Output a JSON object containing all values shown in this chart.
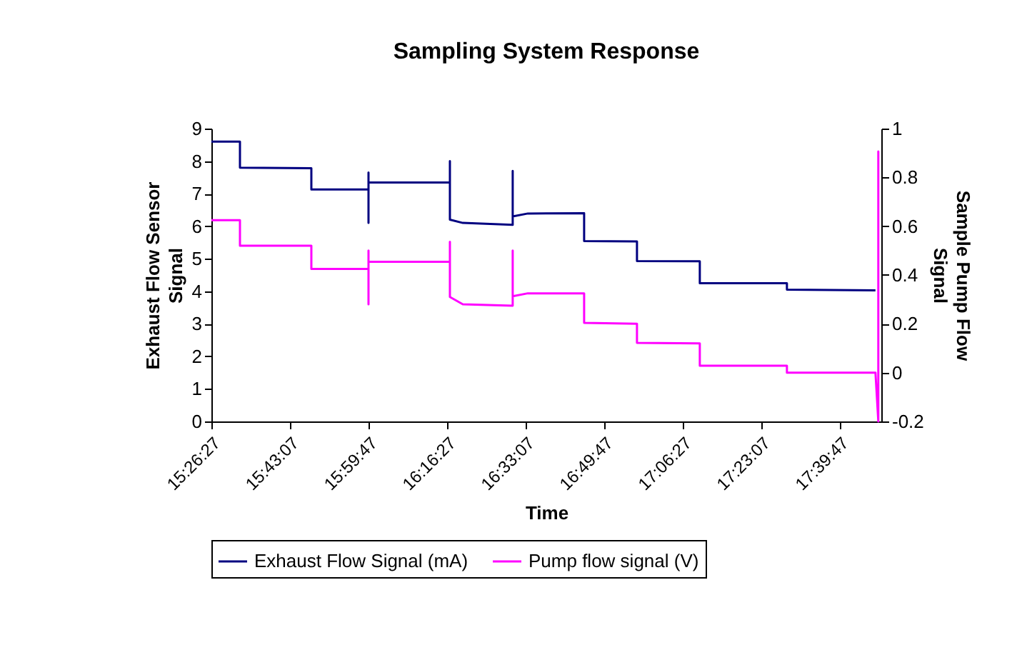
{
  "chart_data": {
    "type": "line",
    "title": "Sampling System Response",
    "xlabel": "Time",
    "ylabel": "Exhaust Flow Sensor Signal",
    "y2label": "Sample Pump Flow Signal",
    "xlim": [
      15.4408,
      17.81
    ],
    "xticks": [
      {
        "value": 15.4408,
        "label": "15:26:27"
      },
      {
        "value": 15.7186,
        "label": "15:43:07"
      },
      {
        "value": 15.9964,
        "label": "15:59:47"
      },
      {
        "value": 16.2742,
        "label": "16:16:27"
      },
      {
        "value": 16.5519,
        "label": "16:33:07"
      },
      {
        "value": 16.8297,
        "label": "16:49:47"
      },
      {
        "value": 17.1075,
        "label": "17:06:27"
      },
      {
        "value": 17.3853,
        "label": "17:23:07"
      },
      {
        "value": 17.6631,
        "label": "17:39:47"
      }
    ],
    "ylim": [
      0,
      9
    ],
    "yticks": [
      0,
      1,
      2,
      3,
      4,
      5,
      6,
      7,
      8,
      9
    ],
    "y2lim": [
      -0.2,
      1
    ],
    "y2ticks": [
      -0.2,
      0,
      0.2,
      0.4,
      0.6,
      0.8,
      1
    ],
    "grid": false,
    "legend": "bottom",
    "marker": "none",
    "line_style": "solid",
    "series": [
      {
        "name": "Exhaust Flow Signal (mA)",
        "color": "#000080",
        "x": [
          15.4408,
          15.5418,
          15.5418,
          15.7943,
          15.7943,
          15.9964,
          15.9964,
          15.9964,
          15.9964,
          16.2843,
          16.2843,
          16.2843,
          16.33,
          16.5064,
          16.5064,
          16.5064,
          16.56,
          16.759,
          16.759,
          16.9459,
          16.9459,
          17.1681,
          17.1681,
          17.4762,
          17.4762,
          17.7893
        ],
        "values": [
          8.6,
          8.6,
          7.8,
          7.78,
          7.13,
          7.13,
          6.1,
          7.65,
          7.34,
          7.34,
          8.0,
          6.2,
          6.1,
          6.04,
          7.7,
          6.3,
          6.39,
          6.4,
          5.54,
          5.53,
          4.93,
          4.92,
          4.25,
          4.25,
          4.05,
          4.03
        ]
      },
      {
        "name": "Pump flow signal (V)",
        "color": "#ff00ff",
        "axis": "y2",
        "x": [
          15.4408,
          15.5418,
          15.5418,
          15.7943,
          15.7943,
          15.9964,
          15.9964,
          15.9964,
          15.9964,
          16.2843,
          16.2843,
          16.2843,
          16.33,
          16.5064,
          16.5064,
          16.5064,
          16.56,
          16.759,
          16.759,
          16.9459,
          16.9459,
          17.1681,
          17.1681,
          17.4762,
          17.4762,
          17.7893,
          17.7994,
          17.7994,
          17.7994
        ],
        "values": [
          0.625,
          0.625,
          0.52,
          0.52,
          0.425,
          0.425,
          0.28,
          0.5,
          0.454,
          0.454,
          0.536,
          0.31,
          0.28,
          0.274,
          0.5,
          0.313,
          0.325,
          0.325,
          0.204,
          0.2,
          0.122,
          0.12,
          0.028,
          0.028,
          0.0,
          0.0,
          -0.2,
          0.906,
          0.0
        ]
      }
    ]
  }
}
